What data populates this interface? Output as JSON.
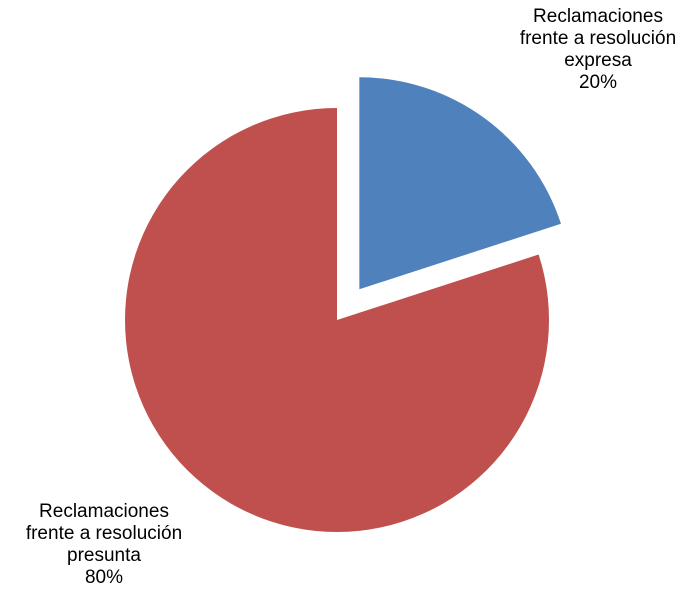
{
  "chart_data": {
    "type": "pie",
    "title": "",
    "slices": [
      {
        "label_lines": [
          "Reclamaciones",
          "frente a resolución",
          "expresa"
        ],
        "percent_label": "20%",
        "value": 20,
        "color": "#4f81bd",
        "exploded": true
      },
      {
        "label_lines": [
          "Reclamaciones",
          "frente a resolución",
          "presunta"
        ],
        "percent_label": "80%",
        "value": 80,
        "color": "#c0504d",
        "exploded": false
      }
    ],
    "start_angle_deg": 0,
    "direction": "clockwise",
    "legend": "none"
  }
}
